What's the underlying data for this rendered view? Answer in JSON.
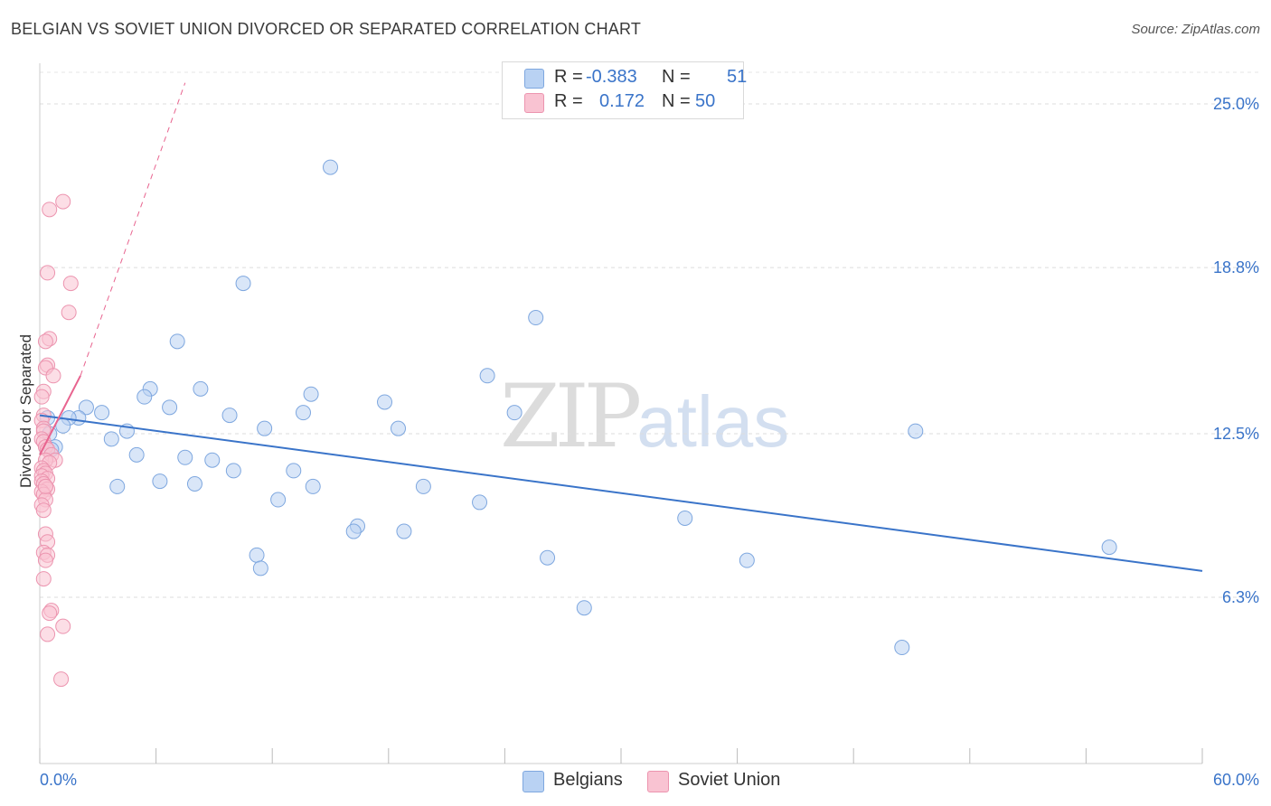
{
  "title": "BELGIAN VS SOVIET UNION DIVORCED OR SEPARATED CORRELATION CHART",
  "source": "Source: ZipAtlas.com",
  "watermark": {
    "zip": "ZIP",
    "atlas": "atlas"
  },
  "legend": {
    "rows": [
      {
        "r_label": "R =",
        "r_value": "-0.383",
        "n_label": "N =",
        "n_value": "51",
        "color": "#a9c8f2"
      },
      {
        "r_label": "R =",
        "r_value": "0.172",
        "n_label": "N =",
        "n_value": "50",
        "color": "#f7b8c8"
      }
    ]
  },
  "bottom_legend": {
    "belgians": "Belgians",
    "soviet": "Soviet Union"
  },
  "chart_data": {
    "type": "scatter",
    "title": "BELGIAN VS SOVIET UNION DIVORCED OR SEPARATED CORRELATION CHART",
    "xlabel": "",
    "ylabel": "Divorced or Separated",
    "xlim": [
      0,
      60
    ],
    "ylim": [
      0,
      26.2
    ],
    "x_tick_labels": [
      "0.0%",
      "60.0%"
    ],
    "y_ticks": [
      {
        "value": 6.3,
        "label": "6.3%"
      },
      {
        "value": 12.5,
        "label": "12.5%"
      },
      {
        "value": 18.8,
        "label": "18.8%"
      },
      {
        "value": 25.0,
        "label": "25.0%"
      }
    ],
    "colors": {
      "belgians": "#3a74c9",
      "belgians_fill": "#b9d2f3",
      "soviet": "#e8648f",
      "soviet_fill": "#f9c3d2"
    },
    "series": [
      {
        "name": "Belgians",
        "points": [
          [
            15.0,
            22.6
          ],
          [
            10.5,
            18.2
          ],
          [
            25.6,
            16.9
          ],
          [
            7.1,
            16.0
          ],
          [
            23.1,
            14.7
          ],
          [
            5.7,
            14.2
          ],
          [
            8.3,
            14.2
          ],
          [
            14.0,
            14.0
          ],
          [
            5.4,
            13.9
          ],
          [
            17.8,
            13.7
          ],
          [
            6.7,
            13.5
          ],
          [
            2.4,
            13.5
          ],
          [
            3.2,
            13.3
          ],
          [
            9.8,
            13.2
          ],
          [
            13.6,
            13.3
          ],
          [
            24.5,
            13.3
          ],
          [
            2.0,
            13.1
          ],
          [
            1.5,
            13.1
          ],
          [
            0.4,
            13.1
          ],
          [
            1.2,
            12.8
          ],
          [
            11.6,
            12.7
          ],
          [
            18.5,
            12.7
          ],
          [
            45.2,
            12.6
          ],
          [
            4.5,
            12.6
          ],
          [
            0.5,
            12.5
          ],
          [
            0.8,
            12.0
          ],
          [
            3.7,
            12.3
          ],
          [
            0.6,
            11.9
          ],
          [
            5.0,
            11.7
          ],
          [
            7.5,
            11.6
          ],
          [
            8.9,
            11.5
          ],
          [
            10.0,
            11.1
          ],
          [
            13.1,
            11.1
          ],
          [
            6.2,
            10.7
          ],
          [
            8.0,
            10.6
          ],
          [
            19.8,
            10.5
          ],
          [
            14.1,
            10.5
          ],
          [
            4.0,
            10.5
          ],
          [
            12.3,
            10.0
          ],
          [
            22.7,
            9.9
          ],
          [
            33.3,
            9.3
          ],
          [
            16.4,
            9.0
          ],
          [
            16.2,
            8.8
          ],
          [
            18.8,
            8.8
          ],
          [
            55.2,
            8.2
          ],
          [
            11.2,
            7.9
          ],
          [
            26.2,
            7.8
          ],
          [
            36.5,
            7.7
          ],
          [
            11.4,
            7.4
          ],
          [
            28.1,
            5.9
          ],
          [
            44.5,
            4.4
          ]
        ]
      },
      {
        "name": "Soviet Union",
        "points": [
          [
            1.2,
            21.3
          ],
          [
            0.5,
            21.0
          ],
          [
            0.4,
            18.6
          ],
          [
            1.6,
            18.2
          ],
          [
            1.5,
            17.1
          ],
          [
            0.5,
            16.1
          ],
          [
            0.3,
            16.0
          ],
          [
            0.4,
            15.1
          ],
          [
            0.3,
            15.0
          ],
          [
            0.7,
            14.7
          ],
          [
            0.2,
            14.1
          ],
          [
            0.1,
            13.9
          ],
          [
            0.2,
            13.2
          ],
          [
            0.1,
            13.0
          ],
          [
            0.2,
            12.7
          ],
          [
            0.2,
            12.6
          ],
          [
            0.1,
            12.3
          ],
          [
            0.2,
            12.2
          ],
          [
            0.3,
            12.0
          ],
          [
            0.4,
            11.9
          ],
          [
            0.6,
            11.7
          ],
          [
            0.8,
            11.5
          ],
          [
            0.3,
            11.5
          ],
          [
            0.5,
            11.4
          ],
          [
            0.1,
            11.2
          ],
          [
            0.2,
            11.1
          ],
          [
            0.3,
            11.0
          ],
          [
            0.1,
            10.9
          ],
          [
            0.4,
            10.8
          ],
          [
            0.1,
            10.7
          ],
          [
            0.2,
            10.6
          ],
          [
            0.3,
            10.5
          ],
          [
            0.4,
            10.4
          ],
          [
            0.1,
            10.3
          ],
          [
            0.2,
            10.2
          ],
          [
            0.3,
            10.0
          ],
          [
            0.1,
            9.8
          ],
          [
            0.2,
            9.6
          ],
          [
            0.3,
            8.7
          ],
          [
            0.4,
            8.4
          ],
          [
            0.2,
            8.0
          ],
          [
            0.4,
            7.9
          ],
          [
            0.3,
            7.7
          ],
          [
            0.2,
            7.0
          ],
          [
            0.6,
            5.8
          ],
          [
            0.5,
            5.7
          ],
          [
            1.2,
            5.2
          ],
          [
            0.4,
            4.9
          ],
          [
            1.1,
            3.2
          ],
          [
            0.3,
            10.5
          ]
        ]
      }
    ],
    "trend_lines": [
      {
        "series": "Belgians",
        "x": [
          0,
          60
        ],
        "y": [
          13.2,
          7.3
        ],
        "style": "solid"
      },
      {
        "series": "Soviet Union",
        "x": [
          0,
          2.1
        ],
        "y": [
          11.7,
          14.7
        ],
        "style": "solid"
      },
      {
        "series": "Soviet Union",
        "x": [
          2.1,
          7.5
        ],
        "y": [
          14.7,
          25.8
        ],
        "style": "dashed"
      }
    ]
  }
}
